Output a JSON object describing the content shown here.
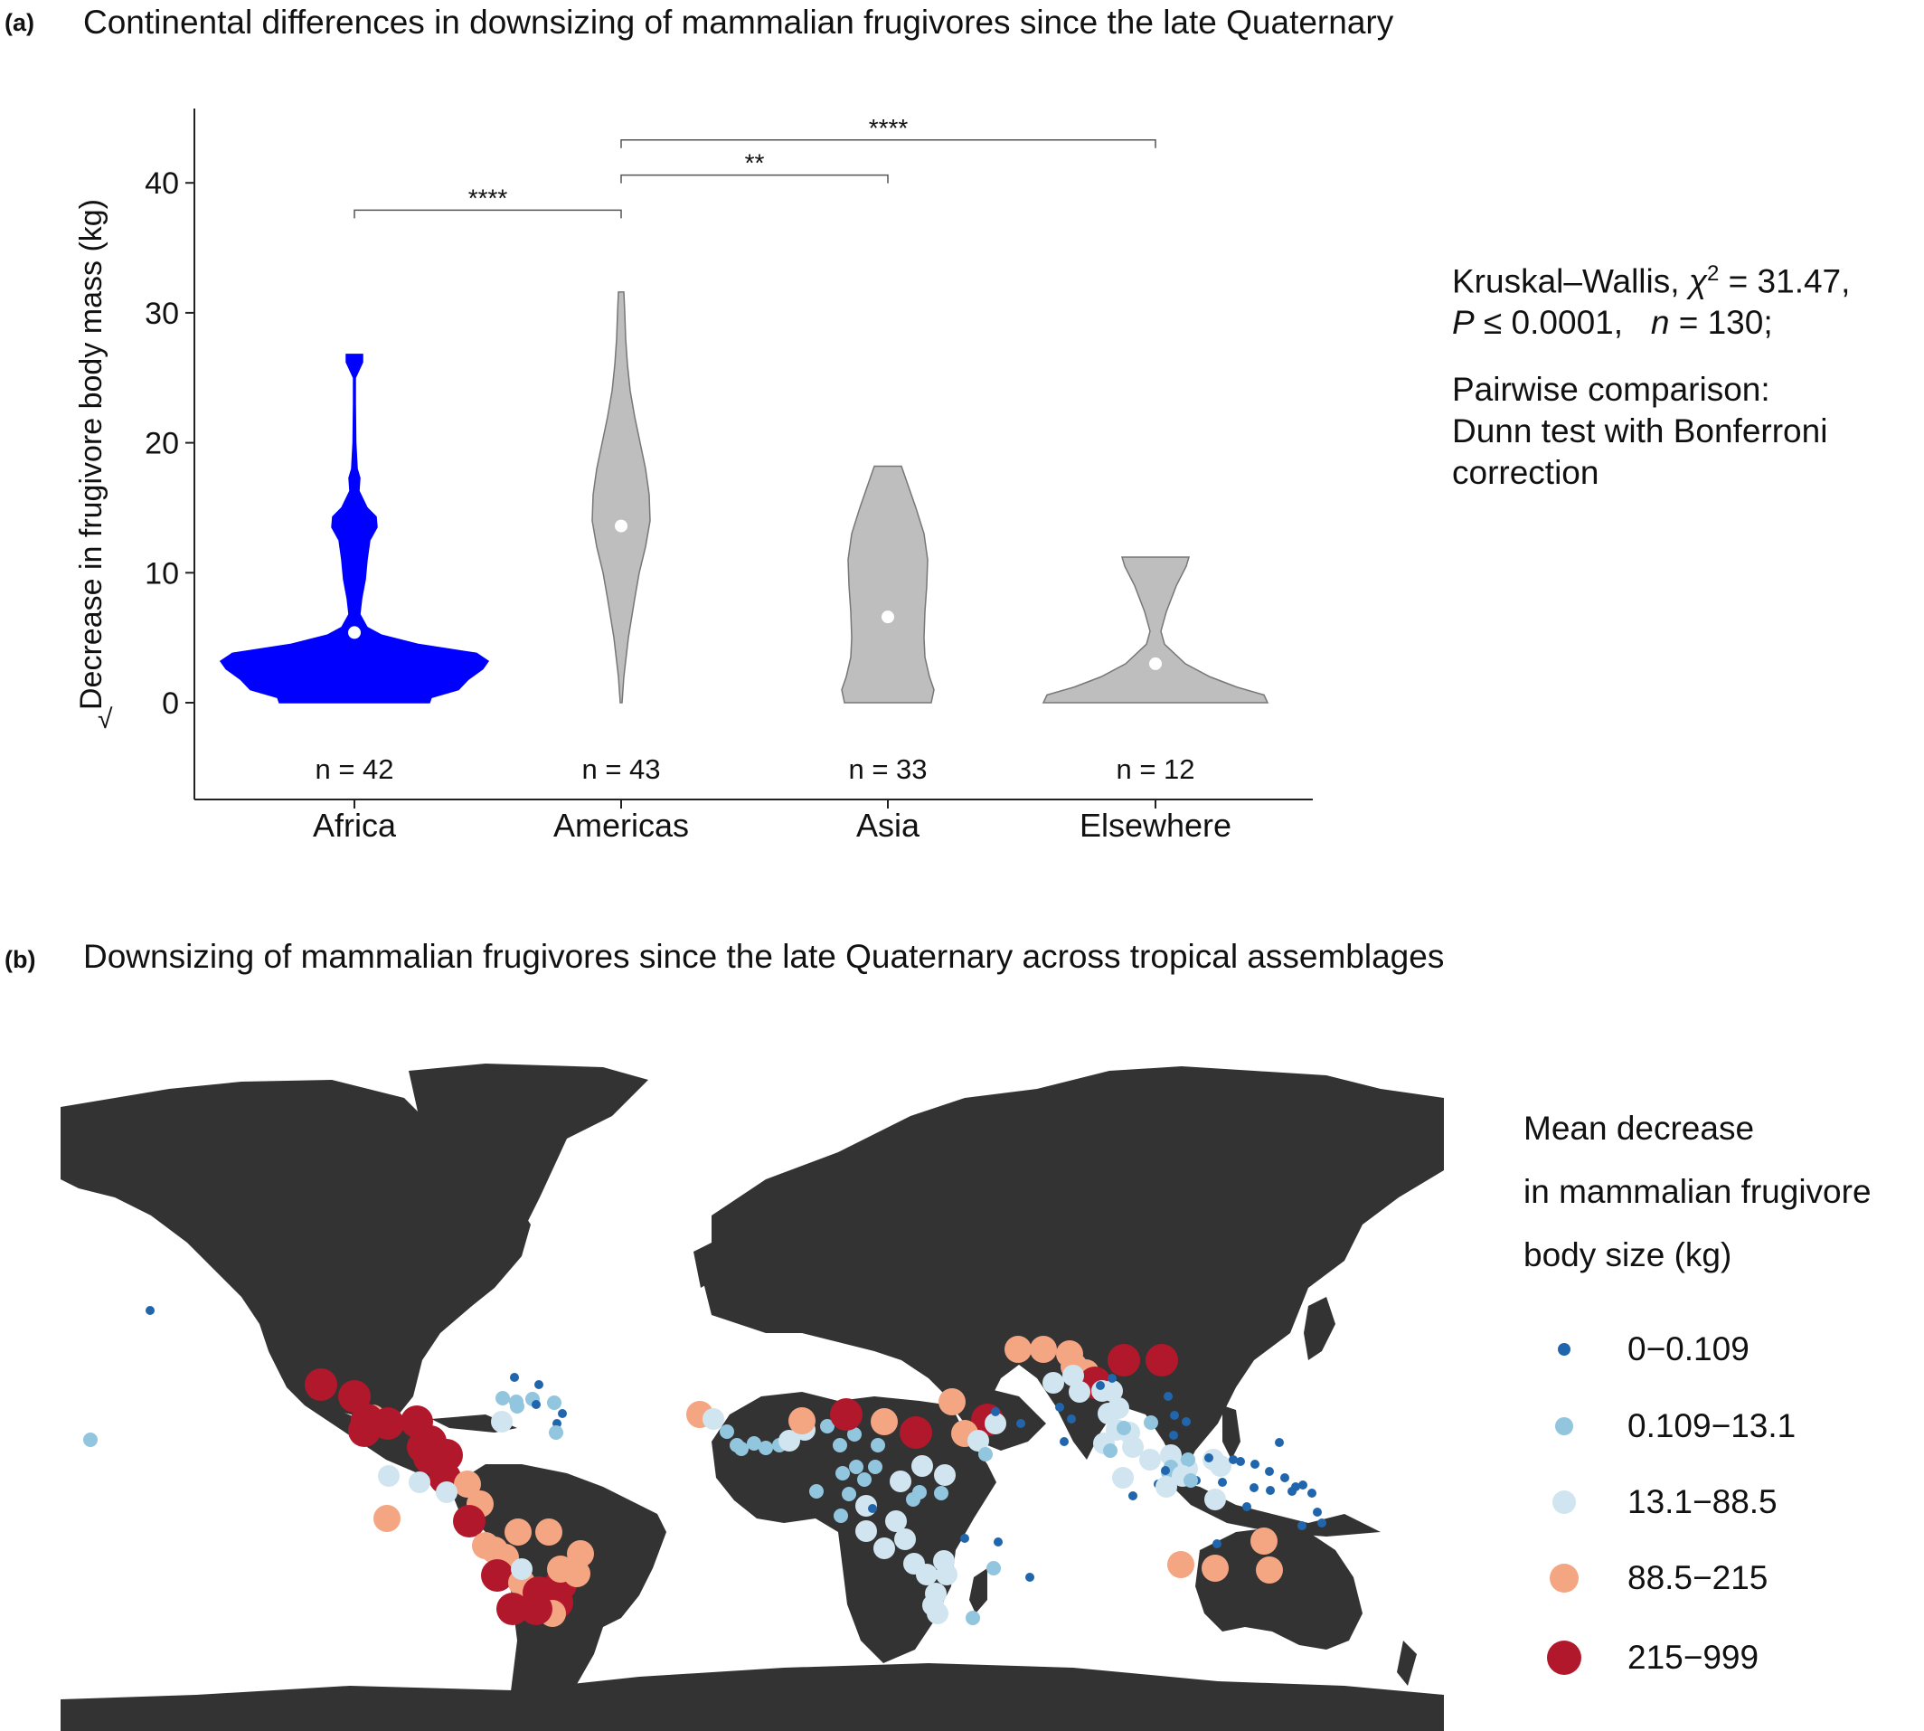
{
  "panel_a": {
    "label": "(a)",
    "title": "Continental differences in downsizing of mammalian frugivores since the late Quaternary",
    "stats": {
      "line1_prefix": "Kruskal–Wallis, ",
      "chi_symbol": "χ",
      "chi_exp": "2",
      "line1_suffix": " = 31.47,",
      "p_symbol": "P",
      "line2_suffix": " ≤ 0.0001,   ",
      "n_symbol": "n",
      "n_suffix": " = 130;",
      "pairwise_line1": "Pairwise comparison:",
      "pairwise_line2": "Dunn test with Bonferroni",
      "pairwise_line3": "correction"
    }
  },
  "chart_data": [
    {
      "type": "violin",
      "ylabel": "Decrease in  frugivore body mass (kg)",
      "ylabel_sqrt_prefix": "√",
      "y_scale": "sqrt",
      "ylim": [
        -7,
        46
      ],
      "yticks": [
        0,
        10,
        20,
        30,
        40
      ],
      "categories": [
        "Africa",
        "Americas",
        "Asia",
        "Elsewhere"
      ],
      "n_labels": [
        "n = 42",
        "n = 43",
        "n = 33",
        "n = 12"
      ],
      "medians": [
        5.4,
        13.6,
        6.6,
        3.0
      ],
      "max": [
        26.8,
        31.6,
        18.2,
        11.2
      ],
      "min": [
        0,
        0,
        0,
        0
      ],
      "fill_colors": [
        "#0000ff",
        "#bebebe",
        "#bebebe",
        "#bebebe"
      ],
      "significance": [
        {
          "from": "Africa",
          "to": "Americas",
          "label": "****"
        },
        {
          "from": "Americas",
          "to": "Asia",
          "label": "**"
        },
        {
          "from": "Americas",
          "to": "Elsewhere",
          "label": "****"
        }
      ]
    },
    {
      "type": "map",
      "label": "(b)",
      "title": "Downsizing of mammalian frugivores since the late Quaternary across tropical assemblages",
      "legend_title_lines": [
        "Mean decrease",
        "in mammalian frugivore",
        "body size (kg)"
      ],
      "legend": [
        {
          "label": "0−0.109",
          "color": "#2166ac"
        },
        {
          "label": "0.109−13.1",
          "color": "#92c5de"
        },
        {
          "label": "13.1−88.5",
          "color": "#d1e5f0"
        },
        {
          "label": "88.5−215",
          "color": "#f4a582"
        },
        {
          "label": "215−999",
          "color": "#b2182b"
        }
      ],
      "land_color": "#333333"
    }
  ]
}
